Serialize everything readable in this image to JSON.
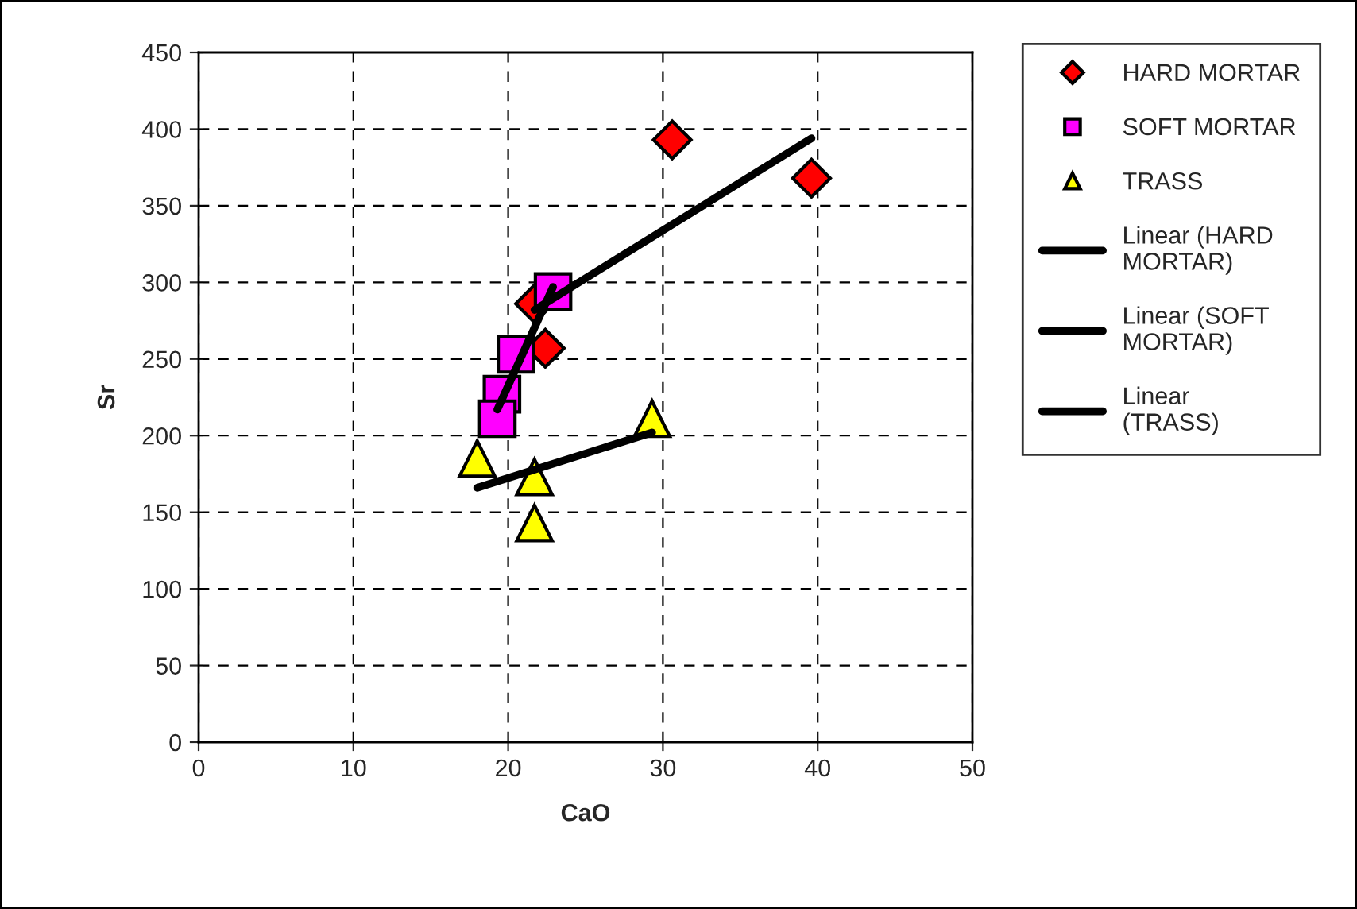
{
  "chart_data": {
    "type": "scatter",
    "xlabel": "CaO",
    "ylabel": "Sr",
    "xlim": [
      0,
      50
    ],
    "ylim": [
      0,
      450
    ],
    "xticks": [
      0,
      10,
      20,
      30,
      40,
      50
    ],
    "yticks": [
      0,
      50,
      100,
      150,
      200,
      250,
      300,
      350,
      400,
      450
    ],
    "grid": true,
    "legend": "right",
    "series": [
      {
        "name": "HARD MORTAR",
        "color": "#ff0000",
        "marker": "diamond",
        "x": [
          30.6,
          39.6,
          21.7,
          22.4
        ],
        "values": [
          393,
          368,
          286,
          257
        ]
      },
      {
        "name": "SOFT MORTAR",
        "color": "#ff00ff",
        "marker": "square",
        "x": [
          22.9,
          20.5,
          19.6,
          19.3
        ],
        "values": [
          294,
          253,
          227,
          211
        ]
      },
      {
        "name": "TRASS",
        "color": "#ffff00",
        "marker": "triangle",
        "x": [
          18.0,
          29.3,
          21.7,
          21.7
        ],
        "values": [
          185,
          211,
          173,
          143
        ]
      },
      {
        "name": "Linear (HARD MORTAR)",
        "type": "line",
        "color": "#000000",
        "marker": "none",
        "x": [
          21.7,
          39.6
        ],
        "values": [
          282,
          394
        ]
      },
      {
        "name": "Linear (SOFT MORTAR)",
        "type": "line",
        "color": "#000000",
        "marker": "none",
        "x": [
          19.3,
          22.9
        ],
        "values": [
          217,
          297
        ]
      },
      {
        "name": "Linear (TRASS)",
        "type": "line",
        "color": "#000000",
        "marker": "none",
        "x": [
          18.0,
          29.3
        ],
        "values": [
          166,
          202
        ]
      }
    ]
  }
}
